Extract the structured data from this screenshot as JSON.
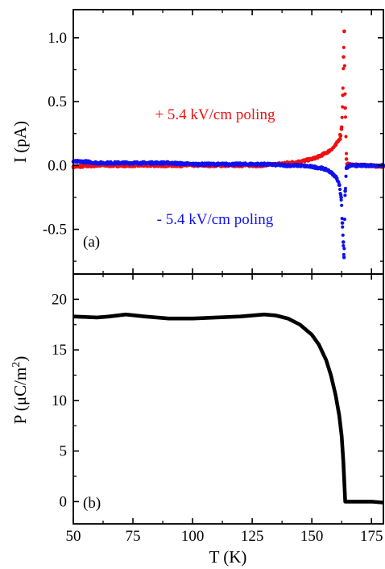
{
  "chart_data": [
    {
      "id": "panel-a",
      "type": "scatter",
      "panel_label": "(a)",
      "xlabel": "",
      "ylabel": "I (pA)",
      "xlim": [
        50,
        180
      ],
      "ylim": [
        -0.85,
        1.22
      ],
      "yticks": [
        {
          "value": -0.5,
          "label": "-0.5"
        },
        {
          "value": 0.0,
          "label": "0.0"
        },
        {
          "value": 0.5,
          "label": "0.5"
        },
        {
          "value": 1.0,
          "label": "1.0"
        }
      ],
      "annotations": [
        {
          "text": "+ 5.4 kV/cm poling",
          "color": "#ee1111",
          "x": 155,
          "y": 0.4
        },
        {
          "text": "- 5.4 kV/cm poling",
          "color": "#1111ee",
          "x": 155,
          "y": -0.42
        }
      ],
      "series": [
        {
          "color": "#ee1111",
          "points": [
            [
              50,
              -0.01
            ],
            [
              60,
              0.0
            ],
            [
              70,
              0.0
            ],
            [
              80,
              0.0
            ],
            [
              90,
              0.0
            ],
            [
              100,
              0.0
            ],
            [
              110,
              0.0
            ],
            [
              120,
              0.0
            ],
            [
              130,
              0.0
            ],
            [
              135,
              0.01
            ],
            [
              140,
              0.02
            ],
            [
              145,
              0.03
            ],
            [
              150,
              0.05
            ],
            [
              153,
              0.07
            ],
            [
              155,
              0.09
            ],
            [
              157,
              0.11
            ],
            [
              159,
              0.14
            ],
            [
              160,
              0.16
            ],
            [
              161,
              0.19
            ],
            [
              162,
              0.23
            ],
            [
              162.5,
              0.3
            ],
            [
              163,
              0.55
            ],
            [
              163.3,
              0.85
            ],
            [
              163.6,
              1.05
            ],
            [
              164,
              0.45
            ],
            [
              164.5,
              0.05
            ],
            [
              165,
              0.01
            ],
            [
              170,
              0.0
            ],
            [
              175,
              0.0
            ],
            [
              180,
              -0.01
            ]
          ]
        },
        {
          "color": "#1111ee",
          "points": [
            [
              50,
              0.03
            ],
            [
              55,
              0.03
            ],
            [
              60,
              0.02
            ],
            [
              70,
              0.02
            ],
            [
              80,
              0.02
            ],
            [
              90,
              0.02
            ],
            [
              100,
              0.01
            ],
            [
              110,
              0.01
            ],
            [
              120,
              0.01
            ],
            [
              130,
              0.01
            ],
            [
              140,
              0.0
            ],
            [
              145,
              0.0
            ],
            [
              150,
              -0.01
            ],
            [
              154,
              -0.02
            ],
            [
              157,
              -0.04
            ],
            [
              159,
              -0.07
            ],
            [
              160.5,
              -0.1
            ],
            [
              161.5,
              -0.15
            ],
            [
              162.3,
              -0.25
            ],
            [
              162.8,
              -0.45
            ],
            [
              163.2,
              -0.6
            ],
            [
              163.5,
              -0.72
            ],
            [
              164,
              -0.2
            ],
            [
              164.5,
              -0.02
            ],
            [
              166,
              0.0
            ],
            [
              170,
              0.0
            ],
            [
              175,
              0.0
            ],
            [
              180,
              0.0
            ]
          ]
        }
      ]
    },
    {
      "id": "panel-b",
      "type": "line",
      "panel_label": "(b)",
      "xlabel": "T (K)",
      "ylabel_prefix": "P (μC/m",
      "ylabel_sup": "2",
      "ylabel_suffix": ")",
      "xlim": [
        50,
        180
      ],
      "ylim": [
        -2.2,
        22.5
      ],
      "xticks": [
        {
          "value": 50,
          "label": "50"
        },
        {
          "value": 75,
          "label": "75"
        },
        {
          "value": 100,
          "label": "100"
        },
        {
          "value": 125,
          "label": "125"
        },
        {
          "value": 150,
          "label": "150"
        },
        {
          "value": 175,
          "label": "175"
        }
      ],
      "yticks": [
        {
          "value": 0,
          "label": "0"
        },
        {
          "value": 5,
          "label": "5"
        },
        {
          "value": 10,
          "label": "10"
        },
        {
          "value": 15,
          "label": "15"
        },
        {
          "value": 20,
          "label": "20"
        }
      ],
      "series": [
        {
          "color": "#000000",
          "points": [
            [
              50,
              18.3
            ],
            [
              60,
              18.2
            ],
            [
              65,
              18.3
            ],
            [
              72,
              18.5
            ],
            [
              80,
              18.3
            ],
            [
              90,
              18.1
            ],
            [
              100,
              18.1
            ],
            [
              110,
              18.2
            ],
            [
              120,
              18.3
            ],
            [
              130,
              18.5
            ],
            [
              135,
              18.4
            ],
            [
              140,
              18.1
            ],
            [
              145,
              17.5
            ],
            [
              150,
              16.5
            ],
            [
              153,
              15.5
            ],
            [
              156,
              14.0
            ],
            [
              158,
              12.5
            ],
            [
              160,
              10.5
            ],
            [
              161.5,
              8.5
            ],
            [
              162.5,
              6.5
            ],
            [
              163.2,
              4.0
            ],
            [
              163.6,
              2.0
            ],
            [
              164,
              0.0
            ],
            [
              170,
              0.0
            ],
            [
              175,
              0.0
            ],
            [
              180,
              -0.1
            ]
          ]
        }
      ]
    }
  ]
}
